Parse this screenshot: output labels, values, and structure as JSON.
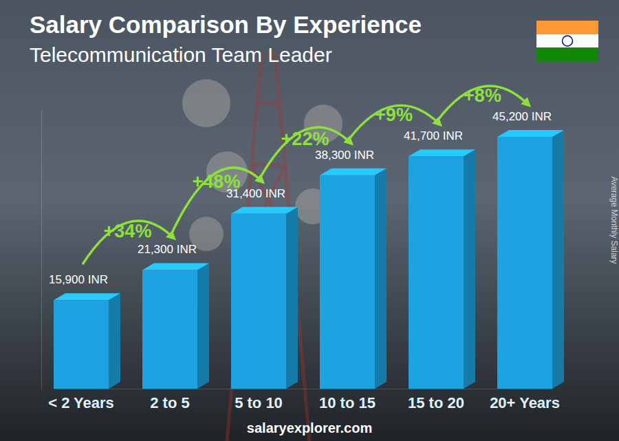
{
  "chart_data": {
    "type": "bar",
    "title": "Salary Comparison By Experience",
    "subtitle": "Telecommunication Team Leader",
    "y_label": "Average Monthly Salary",
    "categories": [
      "< 2 Years",
      "2 to 5",
      "5 to 10",
      "10 to 15",
      "15 to 20",
      "20+ Years"
    ],
    "values": [
      15900,
      21300,
      31400,
      38300,
      41700,
      45200
    ],
    "value_labels": [
      "15,900 INR",
      "21,300 INR",
      "31,400 INR",
      "38,300 INR",
      "41,700 INR",
      "45,200 INR"
    ],
    "color": "#1ea3e2",
    "ylim": [
      0,
      50000
    ],
    "data_labels": true,
    "tick_labels": "x",
    "annotations": [
      "+34%",
      "+48%",
      "+22%",
      "+9%",
      "+8%"
    ],
    "source": "salaryexplorer.com"
  }
}
